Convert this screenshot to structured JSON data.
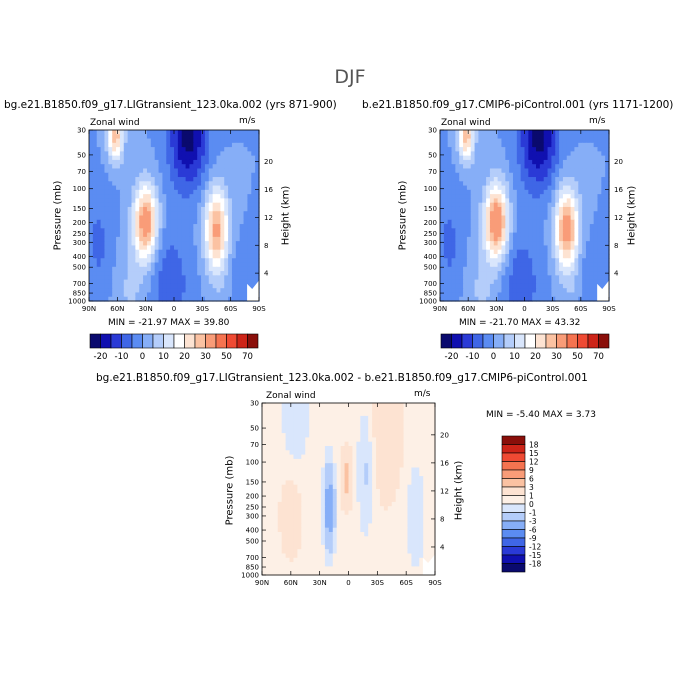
{
  "season": "DJF",
  "colors": {
    "levels_abs": [
      "#0a0a6e",
      "#1010b0",
      "#2a3ad6",
      "#3f66e6",
      "#5b8cf2",
      "#86aef7",
      "#b4cdfa",
      "#d9e6fc",
      "#ffffff",
      "#fde3d2",
      "#fbc2a2",
      "#f99c78",
      "#f57350",
      "#ef4a33",
      "#cd2418",
      "#8a0f0a"
    ],
    "levels_diff": [
      "#0a0a6e",
      "#1010b0",
      "#2a3ad6",
      "#3f66e6",
      "#5b8cf2",
      "#86aef7",
      "#b4cdfa",
      "#d9e6fc",
      "#fdf0e6",
      "#fde3d2",
      "#fbc2a2",
      "#f99c78",
      "#f57350",
      "#ef4a33",
      "#cd2418",
      "#8a0f0a"
    ]
  },
  "chart_data": [
    {
      "type": "heatmap",
      "title": "bg.e21.B1850.f09_g17.LIGtransient_123.0ka.002 (yrs 871-900)",
      "left_label": "Zonal wind",
      "units": "m/s",
      "xlabel": "",
      "ylabel": "Pressure (mb)",
      "y2label": "Height (km)",
      "x_ticks": [
        "90N",
        "60N",
        "30N",
        "0",
        "30S",
        "60S",
        "90S"
      ],
      "y_ticks": [
        "30",
        "50",
        "70",
        "100",
        "150",
        "200",
        "250",
        "300",
        "400",
        "500",
        "700",
        "850",
        "1000"
      ],
      "y2_ticks": [
        "20",
        "16",
        "12",
        "8",
        "4"
      ],
      "min_max": "MIN = -21.97   MAX = 39.80",
      "colorbar_labels": [
        "-20",
        "-10",
        "0",
        "10",
        "20",
        "30",
        "50",
        "70"
      ]
    },
    {
      "type": "heatmap",
      "title": "b.e21.B1850.f09_g17.CMIP6-piControl.001 (yrs 1171-1200)",
      "left_label": "Zonal wind",
      "units": "m/s",
      "xlabel": "",
      "ylabel": "Pressure (mb)",
      "y2label": "Height (km)",
      "x_ticks": [
        "90N",
        "60N",
        "30N",
        "0",
        "30S",
        "60S",
        "90S"
      ],
      "y_ticks": [
        "30",
        "50",
        "70",
        "100",
        "150",
        "200",
        "250",
        "300",
        "400",
        "500",
        "700",
        "850",
        "1000"
      ],
      "y2_ticks": [
        "20",
        "16",
        "12",
        "8",
        "4"
      ],
      "min_max": "MIN = -21.70   MAX = 43.32",
      "colorbar_labels": [
        "-20",
        "-10",
        "0",
        "10",
        "20",
        "30",
        "50",
        "70"
      ]
    },
    {
      "type": "heatmap",
      "title": "bg.e21.B1850.f09_g17.LIGtransient_123.0ka.002 - b.e21.B1850.f09_g17.CMIP6-piControl.001",
      "left_label": "Zonal wind",
      "units": "m/s",
      "xlabel": "",
      "ylabel": "Pressure (mb)",
      "y2label": "Height (km)",
      "x_ticks": [
        "90N",
        "60N",
        "30N",
        "0",
        "30S",
        "60S",
        "90S"
      ],
      "y_ticks": [
        "30",
        "50",
        "70",
        "100",
        "150",
        "200",
        "250",
        "300",
        "400",
        "500",
        "700",
        "850",
        "1000"
      ],
      "y2_ticks": [
        "20",
        "16",
        "12",
        "8",
        "4"
      ],
      "min_max": "MIN =  -5.40   MAX =   3.73",
      "colorbar_labels": [
        "18",
        "15",
        "12",
        "9",
        "6",
        "3",
        "1",
        "0",
        "-1",
        "-3",
        "-6",
        "-9",
        "-12",
        "-15",
        "-18"
      ]
    }
  ]
}
